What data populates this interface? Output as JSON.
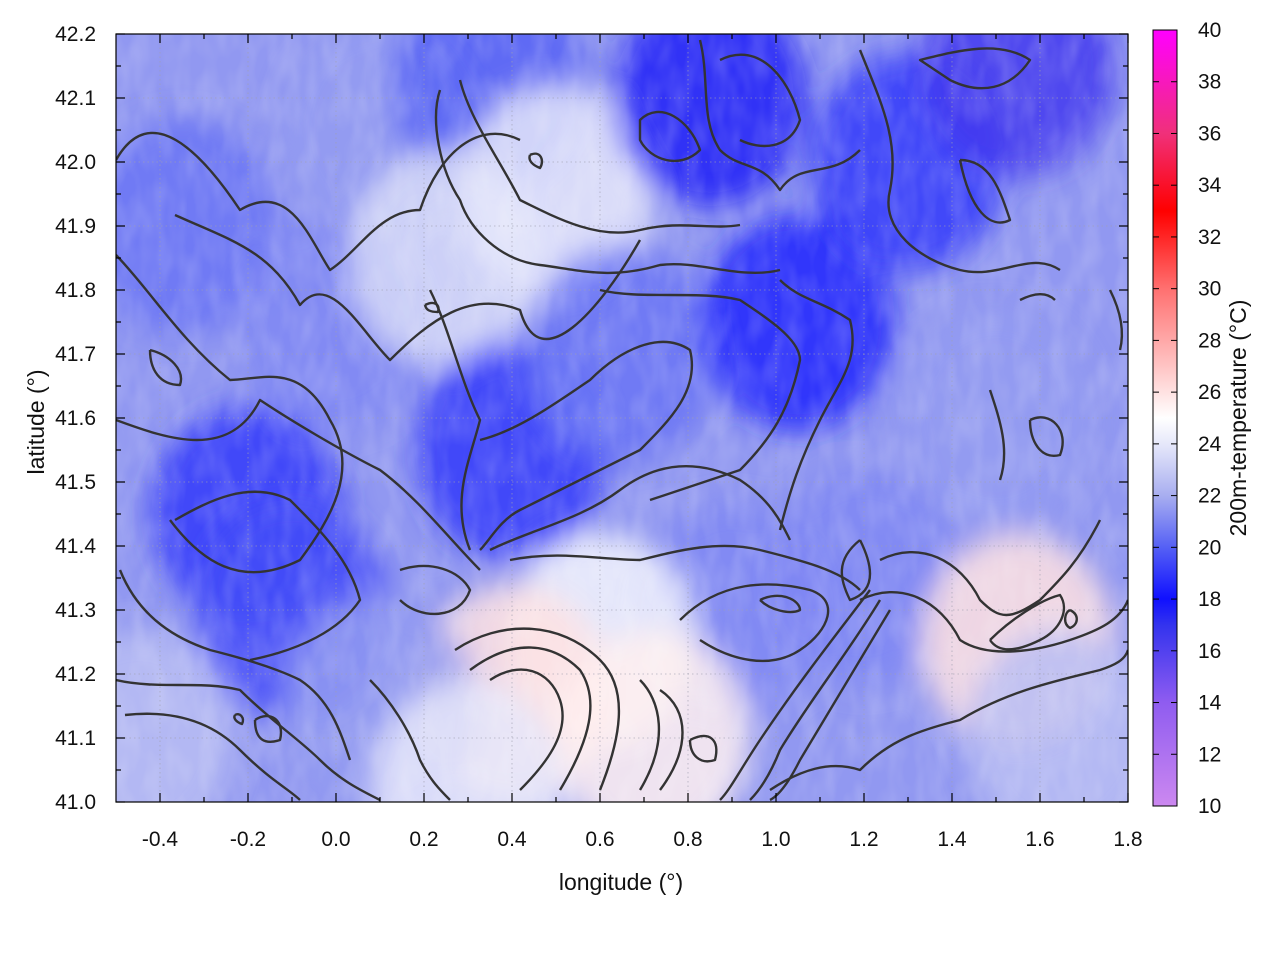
{
  "chart_data": {
    "type": "heatmap",
    "title": "",
    "xlabel": "longitude (°)",
    "ylabel": "latitude (°)",
    "colorbar_label": "200m-temperature (°C)",
    "xlim": [
      -0.5,
      1.8
    ],
    "ylim": [
      41.0,
      42.2
    ],
    "clim": [
      10,
      40
    ],
    "x_ticks": [
      -0.4,
      -0.2,
      0.0,
      0.2,
      0.4,
      0.6,
      0.8,
      1.0,
      1.2,
      1.4,
      1.6,
      1.8
    ],
    "x_tick_labels": [
      "-0.4",
      "-0.2",
      "0.0",
      "0.2",
      "0.4",
      "0.6",
      "0.8",
      "1.0",
      "1.2",
      "1.4",
      "1.6",
      "1.8"
    ],
    "y_ticks": [
      41.0,
      41.1,
      41.2,
      41.3,
      41.4,
      41.5,
      41.6,
      41.7,
      41.8,
      41.9,
      42.0,
      42.1,
      42.2
    ],
    "y_tick_labels": [
      "41.0",
      "41.1",
      "41.2",
      "41.3",
      "41.4",
      "41.5",
      "41.6",
      "41.7",
      "41.8",
      "41.9",
      "42.0",
      "42.1",
      "42.2"
    ],
    "colorbar_ticks": [
      10,
      12,
      14,
      16,
      18,
      20,
      22,
      24,
      26,
      28,
      30,
      32,
      34,
      36,
      38,
      40
    ],
    "colorbar_tick_labels": [
      "10",
      "12",
      "14",
      "16",
      "18",
      "20",
      "22",
      "24",
      "26",
      "28",
      "30",
      "32",
      "34",
      "36",
      "38",
      "40"
    ],
    "colormap": [
      {
        "value": 10,
        "color": "#cc88f0"
      },
      {
        "value": 14,
        "color": "#8f5cf0"
      },
      {
        "value": 17,
        "color": "#3333ee"
      },
      {
        "value": 18,
        "color": "#1010ff"
      },
      {
        "value": 20,
        "color": "#5560f5"
      },
      {
        "value": 22,
        "color": "#a8aef0"
      },
      {
        "value": 24,
        "color": "#e6e8fa"
      },
      {
        "value": 25,
        "color": "#ffffff"
      },
      {
        "value": 27,
        "color": "#ffc4c4"
      },
      {
        "value": 30,
        "color": "#ff7070"
      },
      {
        "value": 33,
        "color": "#ff0000"
      },
      {
        "value": 36,
        "color": "#f0307a"
      },
      {
        "value": 40,
        "color": "#ff00ff"
      }
    ],
    "grid": true,
    "contour_lines": true,
    "temperature_samples": [
      {
        "lon": -0.35,
        "lat": 41.9,
        "t": 20.5
      },
      {
        "lon": -0.2,
        "lat": 41.45,
        "t": 19
      },
      {
        "lon": -0.1,
        "lat": 41.3,
        "t": 19.5
      },
      {
        "lon": 0.0,
        "lat": 41.75,
        "t": 21
      },
      {
        "lon": 0.1,
        "lat": 42.05,
        "t": 21.5
      },
      {
        "lon": 0.35,
        "lat": 42.12,
        "t": 20
      },
      {
        "lon": 0.25,
        "lat": 41.85,
        "t": 23.5
      },
      {
        "lon": 0.5,
        "lat": 41.95,
        "t": 24
      },
      {
        "lon": 0.4,
        "lat": 41.55,
        "t": 19
      },
      {
        "lon": 0.65,
        "lat": 41.7,
        "t": 20.5
      },
      {
        "lon": 0.85,
        "lat": 42.1,
        "t": 17.5
      },
      {
        "lon": 1.05,
        "lat": 41.75,
        "t": 18.5
      },
      {
        "lon": 1.3,
        "lat": 42.0,
        "t": 19
      },
      {
        "lon": 1.55,
        "lat": 42.15,
        "t": 16.5
      },
      {
        "lon": 1.5,
        "lat": 41.6,
        "t": 21.5
      },
      {
        "lon": 1.2,
        "lat": 41.35,
        "t": 21
      },
      {
        "lon": 0.9,
        "lat": 41.3,
        "t": 21
      },
      {
        "lon": 0.6,
        "lat": 41.25,
        "t": 24.5
      },
      {
        "lon": 0.4,
        "lat": 41.17,
        "t": 26
      },
      {
        "lon": 0.72,
        "lat": 41.1,
        "t": 25.5
      },
      {
        "lon": 1.55,
        "lat": 41.25,
        "t": 26
      },
      {
        "lon": 1.65,
        "lat": 41.1,
        "t": 22.5
      },
      {
        "lon": 0.1,
        "lat": 41.15,
        "t": 21.5
      },
      {
        "lon": -0.45,
        "lat": 41.1,
        "t": 22.5
      },
      {
        "lon": 0.3,
        "lat": 41.02,
        "t": 24
      }
    ]
  }
}
